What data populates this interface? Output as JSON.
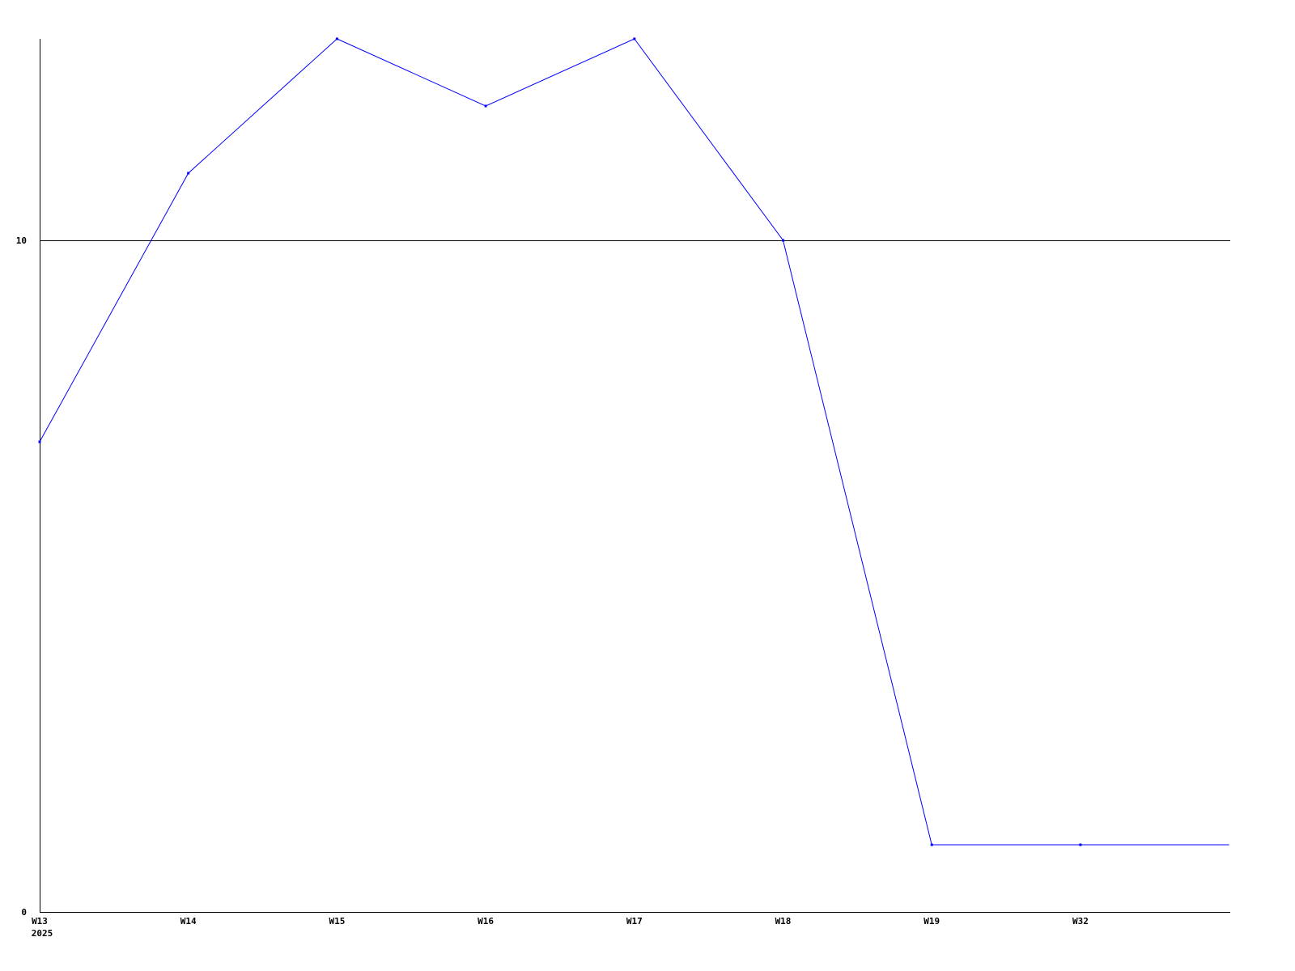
{
  "chart_data": {
    "type": "line",
    "title": "",
    "xlabel": "",
    "ylabel": "",
    "categories": [
      "W13",
      "W14",
      "W15",
      "W16",
      "W17",
      "W18",
      "W19",
      "W32",
      ""
    ],
    "x_sublabel_first": "2025",
    "series": [
      {
        "values": [
          7,
          11,
          13,
          12,
          13,
          10,
          1,
          1,
          1
        ],
        "markers": [
          true,
          true,
          true,
          true,
          true,
          true,
          true,
          true,
          false
        ]
      }
    ],
    "ylim": [
      0,
      13
    ],
    "yticks": [
      0,
      10
    ],
    "ytick_labels": [
      "0",
      "10"
    ],
    "grid": "horizontal line at 10",
    "legend": "none",
    "colors": {
      "series": "#0000ff",
      "axis": "#000000",
      "background": "#ffffff"
    }
  }
}
